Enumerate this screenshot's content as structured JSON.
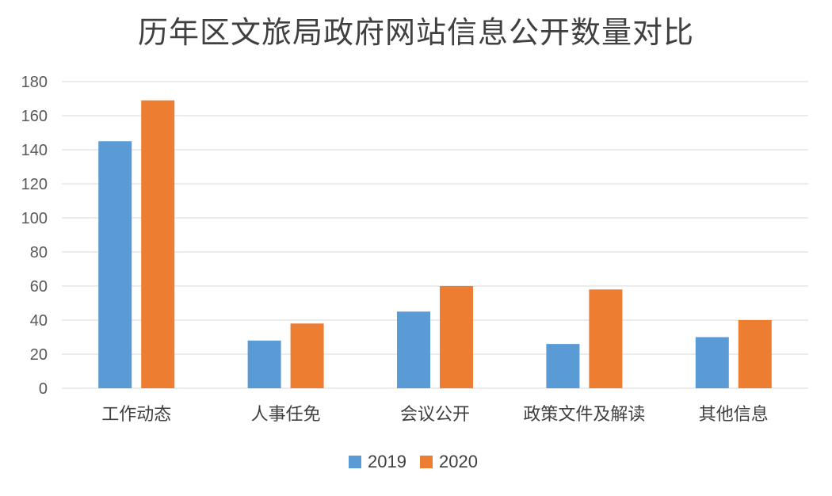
{
  "chart_data": {
    "type": "bar",
    "title": "历年区文旅局政府网站信息公开数量对比",
    "xlabel": "",
    "ylabel": "",
    "categories": [
      "工作动态",
      "人事任免",
      "会议公开",
      "政策文件及解读",
      "其他信息"
    ],
    "series": [
      {
        "name": "2019",
        "color": "#5B9BD5",
        "values": [
          145,
          28,
          45,
          26,
          30
        ]
      },
      {
        "name": "2020",
        "color": "#ED7D31",
        "values": [
          169,
          38,
          60,
          58,
          40
        ]
      }
    ],
    "ylim": [
      0,
      180
    ],
    "yticks": [
      0,
      20,
      40,
      60,
      80,
      100,
      120,
      140,
      160,
      180
    ],
    "grid": true,
    "legend": "bottom-center"
  }
}
